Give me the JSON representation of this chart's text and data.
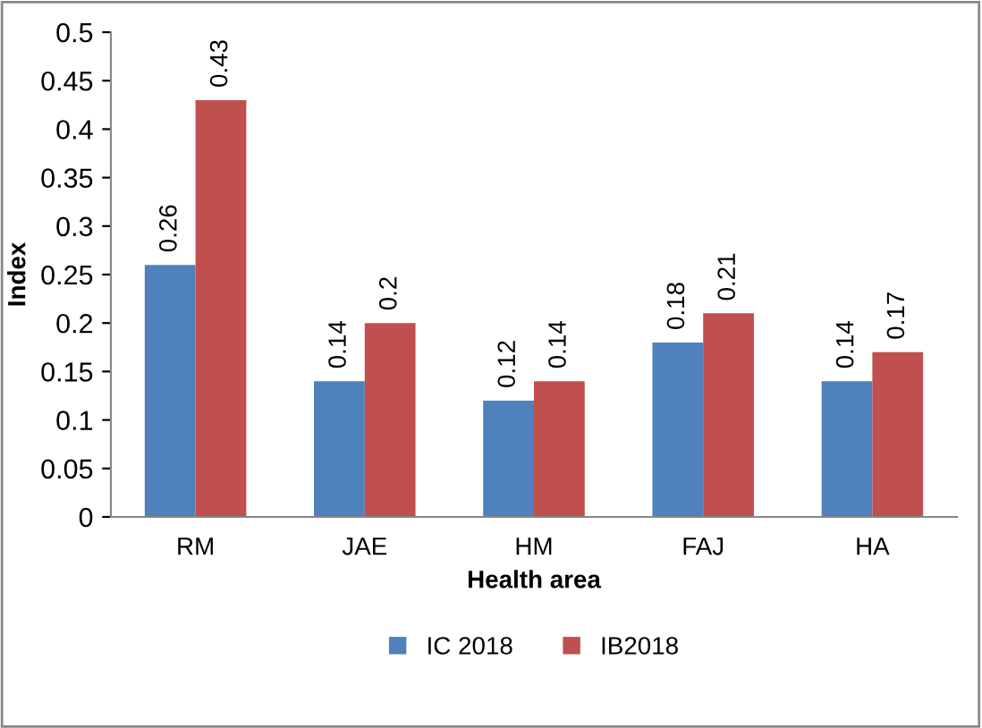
{
  "chart_data": {
    "type": "bar",
    "xlabel": "Health area",
    "ylabel": "Index",
    "categories": [
      "RM",
      "JAE",
      "HM",
      "FAJ",
      "HA"
    ],
    "series": [
      {
        "name": "IC 2018",
        "color": "#4f81bd",
        "values": [
          0.26,
          0.14,
          0.12,
          0.18,
          0.14
        ]
      },
      {
        "name": "IB2018",
        "color": "#c0504d",
        "values": [
          0.43,
          0.2,
          0.14,
          0.21,
          0.17
        ]
      }
    ],
    "ylim": [
      0,
      0.5
    ],
    "yticks": [
      0,
      0.05,
      0.1,
      0.15,
      0.2,
      0.25,
      0.3,
      0.35,
      0.4,
      0.45,
      0.5
    ],
    "data_labels": true,
    "grid": false,
    "legend": "bottom"
  }
}
